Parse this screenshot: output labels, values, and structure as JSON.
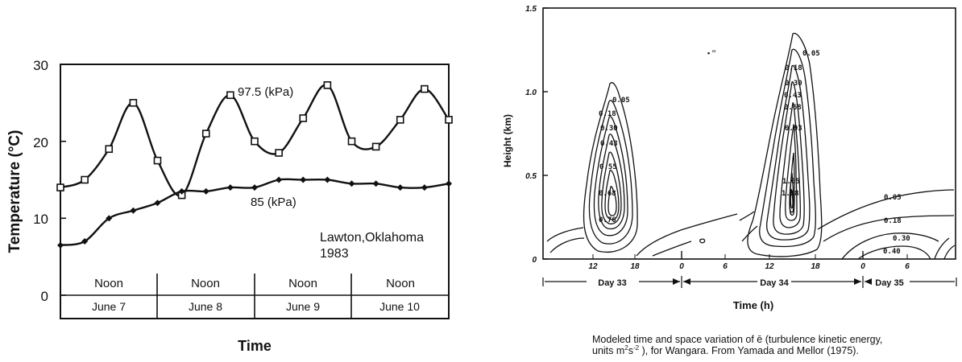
{
  "chart_data": [
    {
      "type": "line",
      "title": "",
      "xlabel": "Time",
      "ylabel": "Temperature  (°C)",
      "ylim": [
        0,
        30
      ],
      "yticks": [
        "0",
        "10",
        "20",
        "30"
      ],
      "x": [
        0,
        1,
        2,
        3,
        4,
        5,
        6,
        7,
        8,
        9,
        10,
        11,
        12,
        13,
        14,
        15,
        16
      ],
      "series": [
        {
          "name": "97.5 (kPa)",
          "marker": "square",
          "values": [
            14,
            15,
            19,
            25,
            17.5,
            13,
            21,
            26,
            20,
            18.5,
            23,
            27.3,
            20,
            19.3,
            22.8,
            26.8,
            22.8
          ]
        },
        {
          "name": "85 (kPa)",
          "marker": "diamond",
          "values": [
            6.5,
            7,
            10,
            11,
            12,
            13.5,
            13.5,
            14,
            14,
            15,
            15,
            15,
            14.5,
            14.5,
            14,
            14,
            14.5
          ]
        }
      ],
      "day_labels": [
        "June 7",
        "June 8",
        "June 9",
        "June 10"
      ],
      "noon_labels": [
        "Noon",
        "Noon",
        "Noon",
        "Noon"
      ],
      "annotation": [
        "Lawton,Oklahoma",
        "1983"
      ],
      "grid": false
    },
    {
      "type": "contour",
      "title": "",
      "xlabel": "Time (h)",
      "ylabel": "Height (km)",
      "ylim": [
        0,
        1.5
      ],
      "yticks": [
        "0",
        "0.5",
        "1.0",
        "1.5"
      ],
      "xticks": [
        "12",
        "18",
        "0",
        "6",
        "12",
        "18",
        "0",
        "6"
      ],
      "day_labels": [
        "Day 33",
        "Day 34",
        "Day 35"
      ],
      "contours_day33": [
        "0.05",
        "0.18",
        "0.30",
        "0.43",
        "0.55",
        "0.68",
        "0.76"
      ],
      "contours_day34": [
        "0.05",
        "0.18",
        "0.30",
        "0.43",
        "0.68",
        "0.93",
        "1.05",
        "1.18"
      ],
      "contours_day35": [
        "0.05",
        "0.18",
        "0.30",
        "0.40"
      ],
      "stray_marks": "• ’’",
      "caption": {
        "line1": "Modeled time and space variation of  ē  (turbulence kinetic energy,",
        "line2_a": "units m",
        "line2_sup1": "2",
        "line2_b": "s",
        "line2_sup2": "-2",
        "line2_c": "  ), for Wangara.  From Yamada and Mellor (1975)."
      }
    }
  ]
}
